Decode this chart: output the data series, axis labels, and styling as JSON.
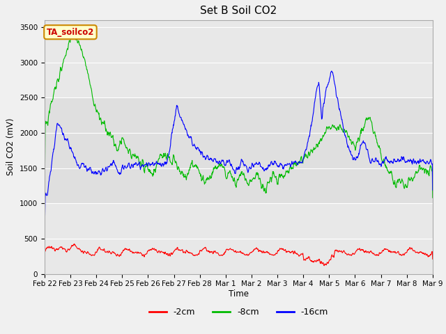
{
  "title": "Set B Soil CO2",
  "ylabel": "Soil CO2 (mV)",
  "xlabel": "Time",
  "annotation": "TA_soilco2",
  "ylim": [
    0,
    3600
  ],
  "yticks": [
    0,
    500,
    1000,
    1500,
    2000,
    2500,
    3000,
    3500
  ],
  "colors": {
    "2cm": "#ff0000",
    "8cm": "#00bb00",
    "16cm": "#0000ff"
  },
  "legend_labels": [
    "-2cm",
    "-8cm",
    "-16cm"
  ],
  "fig_bg": "#f0f0f0",
  "plot_bg": "#e8e8e8",
  "band_bg": "#d8d8d8",
  "grid_color": "#ffffff",
  "annotation_bg": "#ffffcc",
  "annotation_border": "#cc8800",
  "figsize": [
    6.4,
    4.8
  ],
  "dpi": 100
}
